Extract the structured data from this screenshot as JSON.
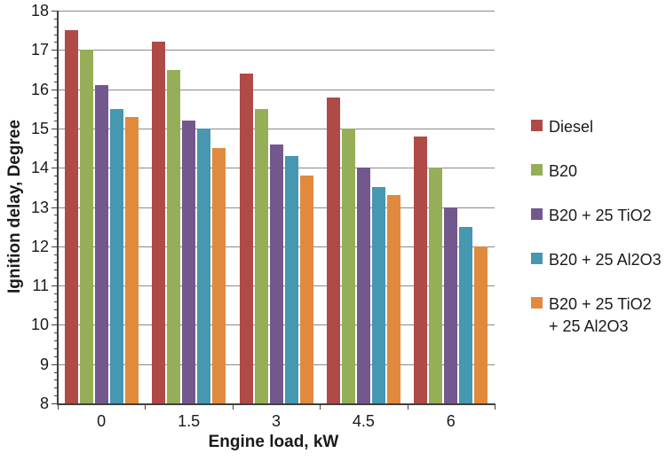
{
  "chart_data": {
    "type": "bar",
    "title": "",
    "xlabel": "Engine load, kW",
    "ylabel": "Ignition delay, Degree",
    "categories": [
      "0",
      "1.5",
      "3",
      "4.5",
      "6"
    ],
    "series": [
      {
        "name": "Diesel",
        "color": "#B04A47",
        "values": [
          17.5,
          17.2,
          16.4,
          15.8,
          14.8
        ]
      },
      {
        "name": "B20",
        "color": "#96AE58",
        "values": [
          17.0,
          16.5,
          15.5,
          15.0,
          14.0
        ]
      },
      {
        "name": "B20 + 25 TiO2",
        "color": "#73588D",
        "values": [
          16.1,
          15.2,
          14.6,
          14.0,
          13.0
        ]
      },
      {
        "name": "B20 + 25 Al2O3",
        "color": "#4697B0",
        "values": [
          15.5,
          15.0,
          14.3,
          13.5,
          12.5
        ]
      },
      {
        "name": "B20 + 25 TiO2 + 25 Al2O3",
        "color": "#E08A3E",
        "values": [
          15.3,
          14.5,
          13.8,
          13.3,
          12.0
        ]
      }
    ],
    "ylim": [
      8,
      18
    ],
    "yticks": [
      8,
      9,
      10,
      11,
      12,
      13,
      14,
      15,
      16,
      17,
      18
    ],
    "ytick_minor_step": 0.2,
    "grid": true,
    "legend_position": "right",
    "gridline_color": "#8A8A8A",
    "axis_color": "#3F3F3F",
    "text_color": "#1A1A1A"
  }
}
